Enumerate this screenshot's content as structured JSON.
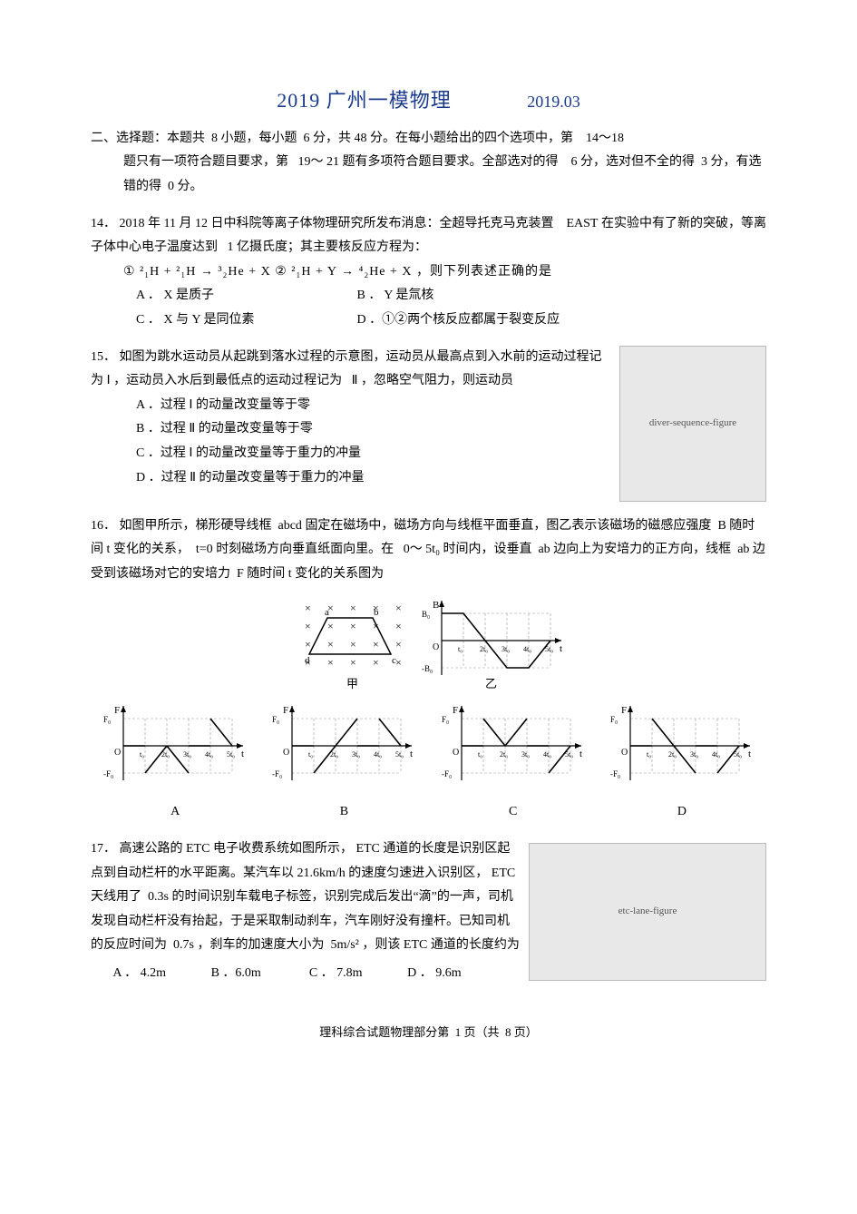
{
  "title": {
    "main": "2019 广州一模物理",
    "date": "2019.03"
  },
  "instructions": {
    "line1_a": "二、选择题：本题共",
    "n_q": "8",
    "line1_b": "小题，每小题",
    "pts_each": "6",
    "line1_c": "分，共",
    "pts_total": "48",
    "line1_d": "分。在每小题给出的四个选项中，第",
    "range_single": "14～18",
    "line1_e": "题只有一项符合题目要求，第",
    "range_multi": "19～ 21",
    "line1_f": "题有多项符合题目要求。全部选对的得",
    "pts_full": "6",
    "line1_g": "分，选对但不全的得",
    "pts_partial": "3",
    "line1_h": "分，有选错的得",
    "pts_wrong": "0",
    "line1_i": "分。"
  },
  "q14": {
    "num": "14．",
    "year": "2018",
    "mon": "11",
    "day": "12",
    "stem_a": "年",
    "stem_b": "月",
    "stem_c": "日中科院等离子体物理研究所发布消息：全超导托克马克装置",
    "dev": "EAST",
    "stem_d": "在实验中有了新的突破，等离子体中心电子温度达到",
    "temp": "1",
    "stem_e": "亿摄氏度；其主要核反应方程为：",
    "eq_line": "① ²₁H + ²₁H → ³₂He + X   ② ²₁H + Y → ⁴₂He + X ，则下列表述正确的是",
    "optA": "A ． X 是质子",
    "optB": "B ． Y 是氚核",
    "optC": "C ． X 与 Y 是同位素",
    "optD": "D ．①②两个核反应都属于裂变反应"
  },
  "q15": {
    "num": "15．",
    "stem_a": "如图为跳水运动员从起跳到落水过程的示意图，运动员从最高点到入水前的运动过程记为",
    "p1": "Ⅰ",
    "stem_b": "，运动员入水后到最低点的运动过程记为",
    "p2": "Ⅱ",
    "stem_c": "，忽略空气阻力，则运动员",
    "optA": "A ．过程 Ⅰ 的动量改变量等于零",
    "optB": "B ．过程 Ⅱ 的动量改变量等于零",
    "optC": "C ．过程 Ⅰ 的动量改变量等于重力的冲量",
    "optD": "D ．过程 Ⅱ 的动量改变量等于重力的冲量",
    "img_alt": "diver-sequence-figure"
  },
  "q16": {
    "num": "16．",
    "stem_a": "如图甲所示，梯形硬导线框",
    "frame": "abcd",
    "stem_b": "固定在磁场中，磁场方向与线框平面垂直，图乙表示该磁场的磁感应强度",
    "Bsym": "B",
    "stem_c": "随时间",
    "tsym": "t",
    "stem_d": "变化的关系，",
    "t0": "t=0",
    "stem_e": "时刻磁场方向垂直纸面向里。在",
    "range": "0～ 5t₀",
    "stem_f": "时间内，设垂直",
    "ab": "ab",
    "stem_g": "边向上为安培力的正方向，线框",
    "stem_h": "边受到该磁场对它的安培力",
    "Fsym": "F",
    "stem_i": "随时间",
    "stem_j": "变化的关系图为",
    "cap_jia": "甲",
    "cap_yi": "乙",
    "labelA": "A",
    "labelB": "B",
    "labelC": "C",
    "labelD": "D",
    "chartB": {
      "type": "line",
      "xlabel": "t",
      "ylabel": "B",
      "y_tick_pos": "B₀",
      "y_tick_neg": "-B₀",
      "x_ticks": [
        "t₀",
        "2t₀",
        "3t₀",
        "4t₀",
        "5t₀"
      ],
      "points": [
        [
          0,
          1
        ],
        [
          1,
          1
        ],
        [
          3,
          -1
        ],
        [
          4,
          -1
        ],
        [
          5,
          0
        ]
      ],
      "line_color": "#000",
      "grid_color": "#999",
      "dash": "3,2"
    },
    "chartOpts": {
      "common": {
        "xlabel": "t",
        "ylabel": "F",
        "y_tick_pos": "F₀",
        "y_tick_neg": "-F₀",
        "x_ticks": [
          "t₀",
          "2t₀",
          "3t₀",
          "4t₀",
          "5t₀"
        ],
        "line_color": "#000",
        "grid_color": "#999",
        "dash": "3,2"
      },
      "A": {
        "segments": [
          [
            [
              0,
              0
            ],
            [
              1,
              0
            ]
          ],
          [
            [
              1,
              -1
            ],
            [
              2,
              0
            ]
          ],
          [
            [
              2,
              0
            ],
            [
              3,
              -1
            ]
          ],
          [
            [
              3,
              0
            ],
            [
              4,
              0
            ]
          ],
          [
            [
              4,
              1
            ],
            [
              5,
              0
            ]
          ]
        ]
      },
      "B": {
        "segments": [
          [
            [
              0,
              0
            ],
            [
              1,
              0
            ]
          ],
          [
            [
              1,
              -1
            ],
            [
              2,
              0
            ]
          ],
          [
            [
              2,
              0
            ],
            [
              3,
              1
            ]
          ],
          [
            [
              3,
              0
            ],
            [
              4,
              0
            ]
          ],
          [
            [
              4,
              1
            ],
            [
              5,
              0
            ]
          ]
        ]
      },
      "C": {
        "segments": [
          [
            [
              0,
              0
            ],
            [
              1,
              0
            ]
          ],
          [
            [
              1,
              1
            ],
            [
              2,
              0
            ]
          ],
          [
            [
              2,
              0
            ],
            [
              3,
              1
            ]
          ],
          [
            [
              3,
              0
            ],
            [
              4,
              0
            ]
          ],
          [
            [
              4,
              -1
            ],
            [
              5,
              0
            ]
          ]
        ]
      },
      "D": {
        "segments": [
          [
            [
              0,
              0
            ],
            [
              1,
              0
            ]
          ],
          [
            [
              1,
              1
            ],
            [
              2,
              0
            ]
          ],
          [
            [
              2,
              0
            ],
            [
              3,
              -1
            ]
          ],
          [
            [
              3,
              0
            ],
            [
              4,
              0
            ]
          ],
          [
            [
              4,
              -1
            ],
            [
              5,
              0
            ]
          ]
        ]
      }
    }
  },
  "q17": {
    "num": "17．",
    "stem_a": "高速公路的",
    "etc": "ETC",
    "stem_b": "电子收费系统如图所示，",
    "stem_c": "通道的长度是识别区起点到自动栏杆的水平距离。某汽车以",
    "speed": "21.6km/h",
    "stem_d": "的速度匀速进入识别区，",
    "stem_e": "天线用了",
    "t1": "0.3s",
    "stem_f": "的时间识别车载电子标签，识别完成后发出“滴”的一声，司机发现自动栏杆没有抬起，于是采取制动刹车，汽车刚好没有撞杆。已知司机的反应时间为",
    "t2": "0.7s",
    "stem_g": "，刹车的加速度大小为",
    "acc": "5m/s²",
    "stem_h": "，则该",
    "stem_i": "通道的长度约为",
    "optA": "A ． 4.2m",
    "optB": "B ．6.0m",
    "optC": "C ． 7.8m",
    "optD": "D ． 9.6m",
    "img_alt": "etc-lane-figure"
  },
  "footer": {
    "a": "理科综合试题物理部分第",
    "pg": "1",
    "b": "页（共",
    "tot": "8",
    "c": "页）"
  }
}
